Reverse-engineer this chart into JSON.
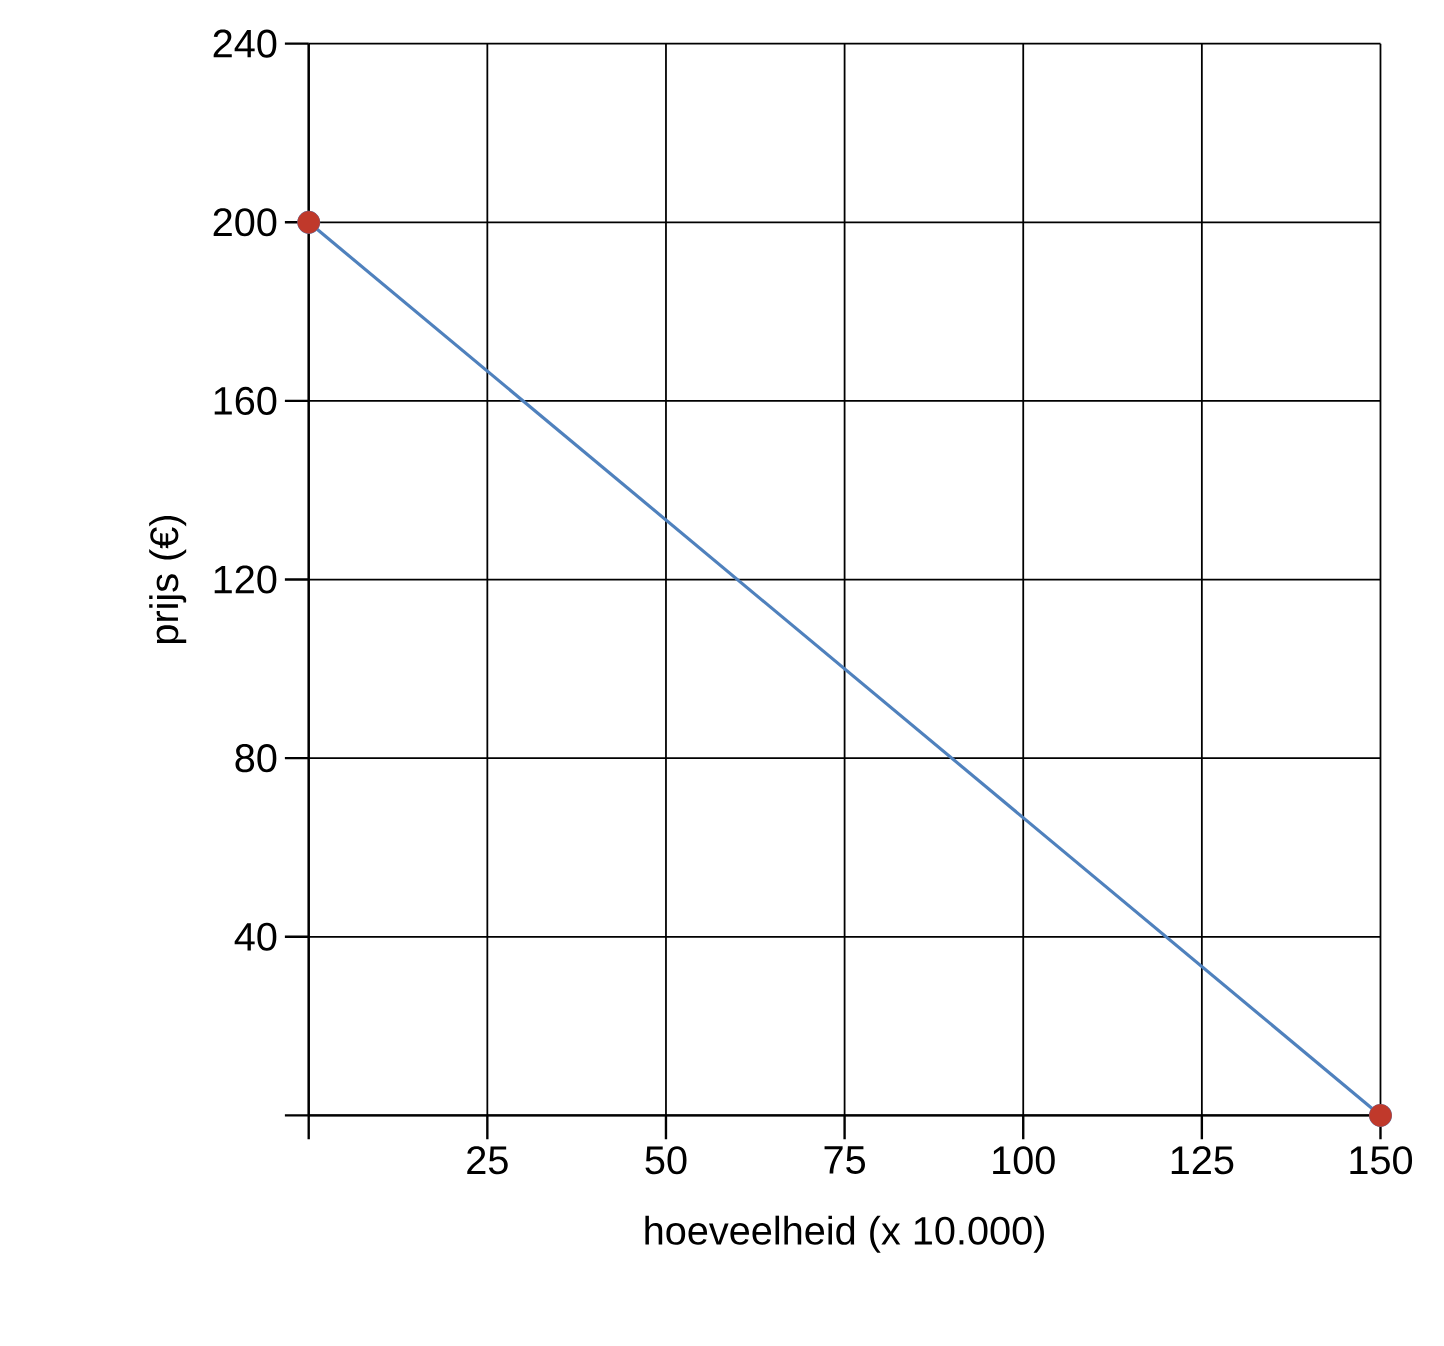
{
  "chart_data": {
    "type": "line",
    "xlabel": "hoeveelheid (x 10.000)",
    "ylabel": "prijs (€)",
    "xlim": [
      0,
      150
    ],
    "ylim": [
      0,
      240
    ],
    "xticks": [
      {
        "value": 0,
        "label": null
      },
      25,
      50,
      75,
      100,
      125,
      150
    ],
    "yticks": [
      {
        "value": 0,
        "label": null
      },
      40,
      80,
      120,
      160,
      200,
      240
    ],
    "grid": true,
    "line_style": "solid",
    "marker": "circle",
    "x": [
      0,
      150
    ],
    "series": [
      {
        "color": "#4f81bd",
        "values": [
          200,
          0
        ]
      },
      {
        "type": "scatter",
        "color": "#c0392b",
        "values": [
          200,
          0
        ]
      }
    ]
  }
}
